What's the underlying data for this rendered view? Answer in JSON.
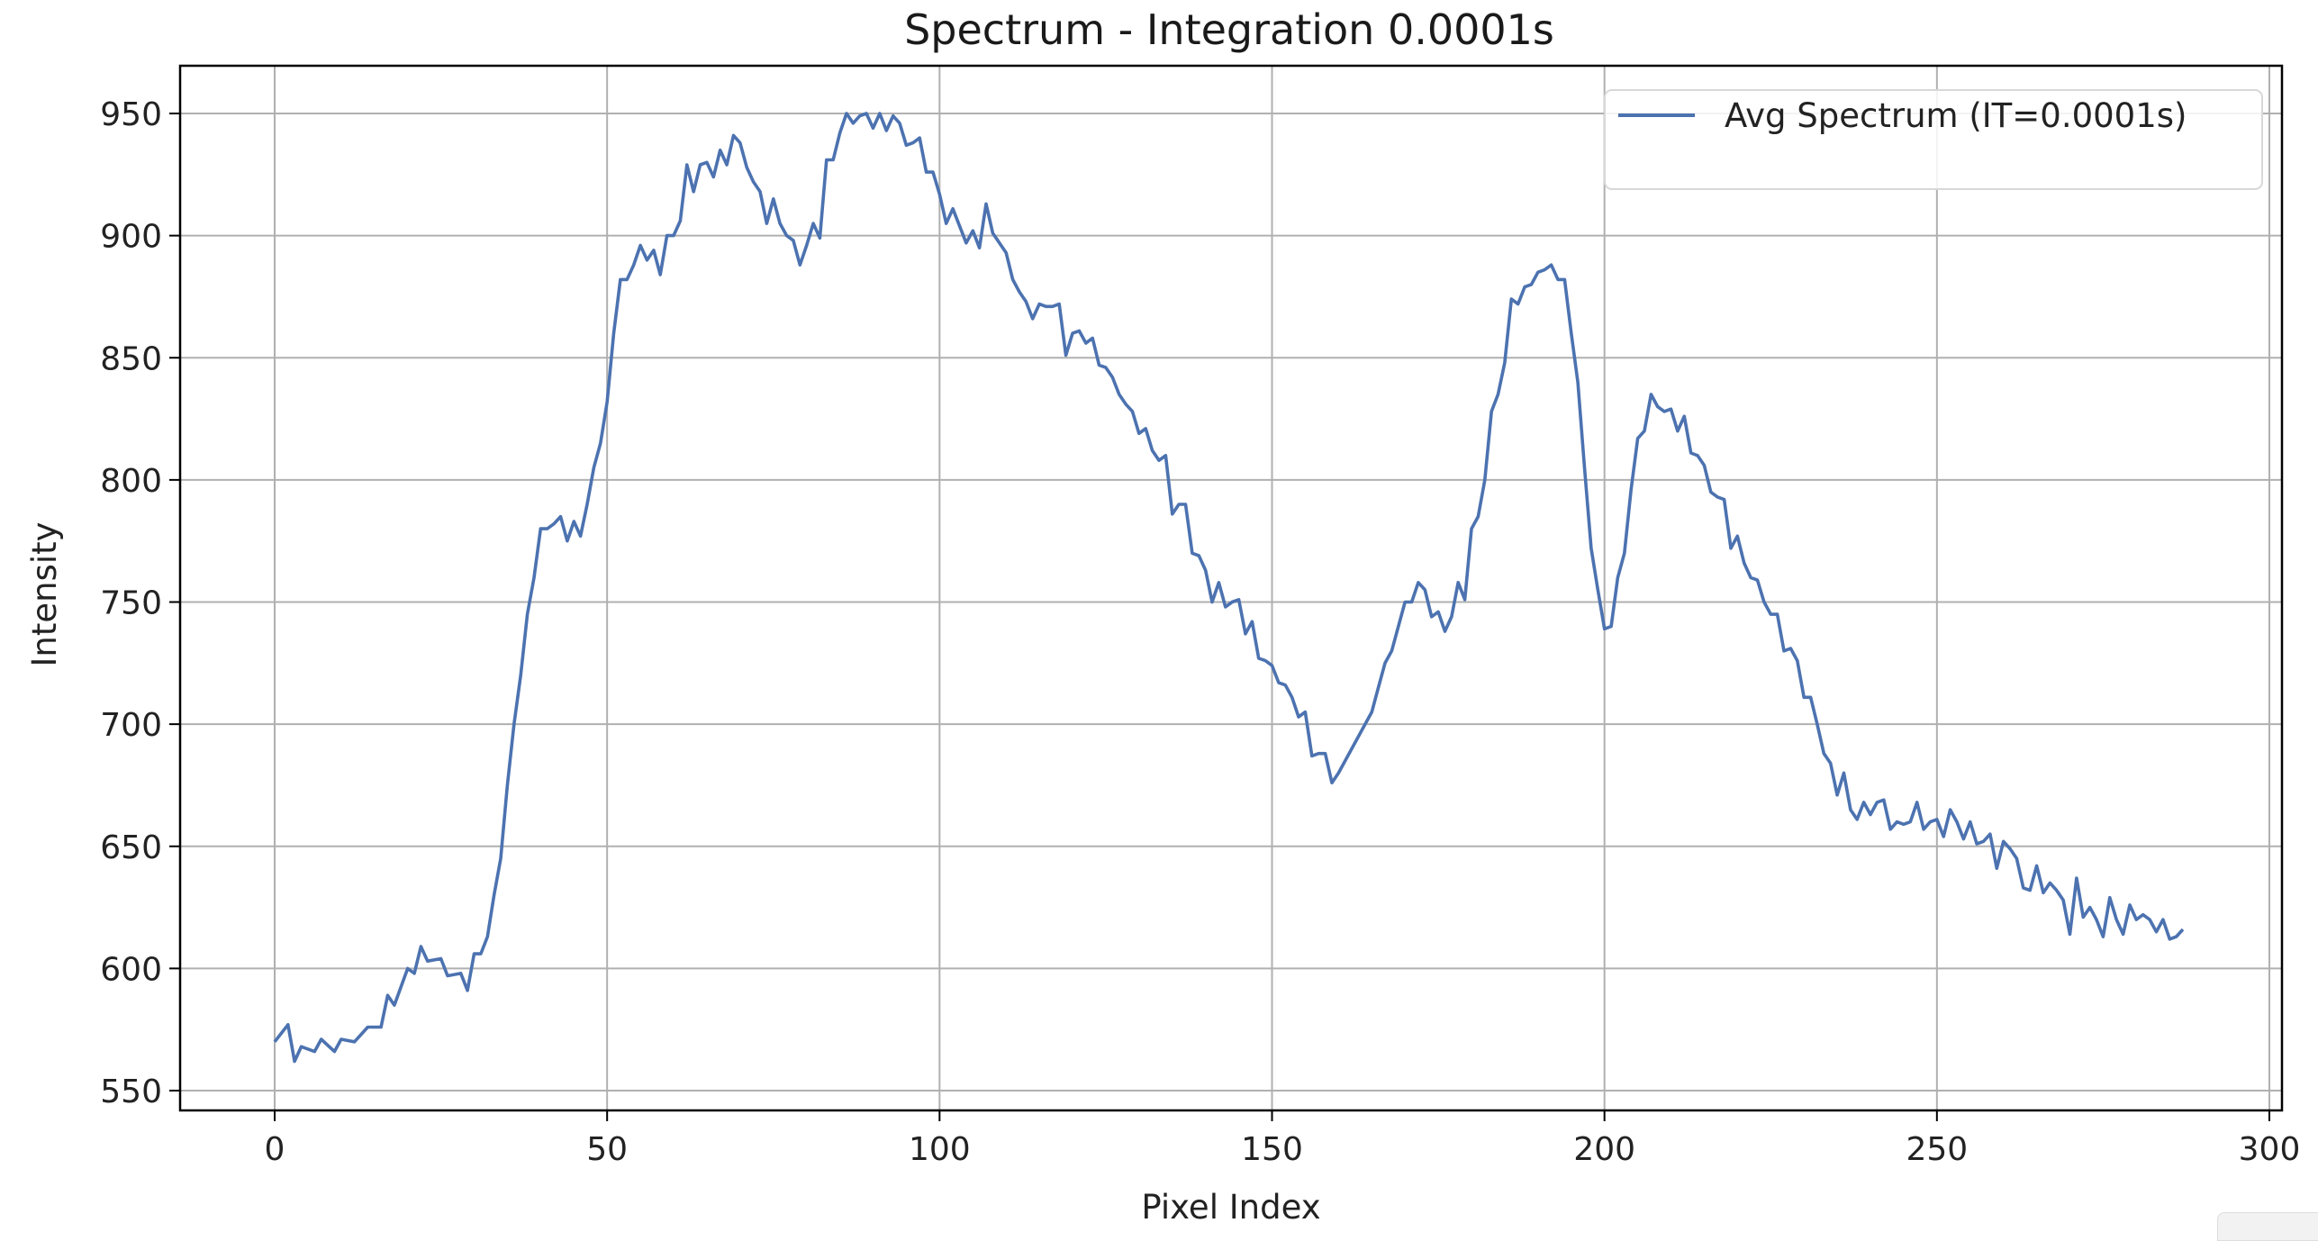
{
  "chart_data": {
    "type": "line",
    "title": "Spectrum - Integration 0.0001s",
    "xlabel": "Pixel Index",
    "ylabel": "Intensity",
    "xlim": [
      -14,
      302
    ],
    "ylim": [
      541,
      970
    ],
    "x_ticks": [
      0,
      50,
      100,
      150,
      200,
      250,
      300
    ],
    "y_ticks": [
      550,
      600,
      650,
      700,
      750,
      800,
      850,
      900,
      950
    ],
    "grid": true,
    "legend_position": "upper right",
    "series": [
      {
        "name": "Avg Spectrum (IT=0.0001s)",
        "color": "#4c72b0",
        "x": [
          0,
          2,
          3,
          4,
          6,
          7,
          9,
          10,
          12,
          14,
          16,
          17,
          18,
          20,
          21,
          22,
          23,
          25,
          26,
          28,
          29,
          30,
          31,
          32,
          33,
          34,
          35,
          36,
          37,
          38,
          39,
          40,
          41,
          42,
          43,
          44,
          45,
          46,
          47,
          48,
          49,
          50,
          51,
          52,
          53,
          54,
          55,
          56,
          57,
          58,
          59,
          60,
          61,
          62,
          63,
          64,
          65,
          66,
          67,
          68,
          69,
          70,
          71,
          72,
          73,
          74,
          75,
          76,
          77,
          78,
          79,
          80,
          81,
          82,
          83,
          84,
          85,
          86,
          87,
          88,
          89,
          90,
          91,
          92,
          93,
          94,
          95,
          96,
          97,
          98,
          99,
          100,
          101,
          102,
          103,
          104,
          105,
          106,
          107,
          108,
          109,
          110,
          111,
          112,
          113,
          114,
          115,
          116,
          117,
          118,
          119,
          120,
          121,
          122,
          123,
          124,
          125,
          126,
          127,
          128,
          129,
          130,
          131,
          132,
          133,
          134,
          135,
          136,
          137,
          138,
          139,
          140,
          141,
          142,
          143,
          144,
          145,
          146,
          147,
          148,
          149,
          150,
          151,
          152,
          153,
          154,
          155,
          156,
          157,
          158,
          159,
          160,
          162,
          164,
          165,
          166,
          167,
          168,
          169,
          170,
          171,
          172,
          173,
          174,
          175,
          176,
          177,
          178,
          179,
          180,
          181,
          182,
          183,
          184,
          185,
          186,
          187,
          188,
          189,
          190,
          191,
          192,
          193,
          194,
          195,
          196,
          197,
          198,
          199,
          200,
          201,
          202,
          203,
          204,
          205,
          206,
          207,
          208,
          209,
          210,
          211,
          212,
          213,
          214,
          215,
          216,
          217,
          218,
          219,
          220,
          221,
          222,
          223,
          224,
          225,
          226,
          227,
          228,
          229,
          230,
          231,
          232,
          233,
          234,
          235,
          236,
          237,
          238,
          239,
          240,
          241,
          242,
          243,
          244,
          245,
          246,
          247,
          248,
          249,
          250,
          251,
          252,
          253,
          254,
          255,
          256,
          257,
          258,
          259,
          260,
          261,
          262,
          263,
          264,
          265,
          266,
          267,
          268,
          269,
          270,
          271,
          272,
          273,
          274,
          275,
          276,
          277,
          278,
          279,
          280,
          281,
          282,
          283,
          284,
          285,
          286,
          287
        ],
        "values": [
          570,
          577,
          562,
          568,
          566,
          571,
          566,
          571,
          570,
          576,
          576,
          589,
          585,
          600,
          598,
          609,
          603,
          604,
          597,
          598,
          591,
          606,
          606,
          613,
          630,
          645,
          675,
          700,
          720,
          745,
          760,
          780,
          780,
          782,
          785,
          775,
          783,
          777,
          790,
          805,
          815,
          832,
          860,
          882,
          882,
          888,
          896,
          890,
          894,
          884,
          900,
          900,
          906,
          929,
          918,
          929,
          930,
          924,
          935,
          929,
          941,
          938,
          928,
          922,
          918,
          905,
          915,
          905,
          900,
          898,
          888,
          896,
          905,
          899,
          931,
          931,
          942,
          950,
          946,
          949,
          950,
          944,
          950,
          943,
          949,
          946,
          937,
          938,
          940,
          926,
          926,
          917,
          905,
          911,
          904,
          897,
          902,
          895,
          913,
          901,
          897,
          893,
          882,
          877,
          873,
          866,
          872,
          871,
          871,
          872,
          851,
          860,
          861,
          856,
          858,
          847,
          846,
          842,
          835,
          831,
          828,
          819,
          821,
          812,
          808,
          810,
          786,
          790,
          790,
          770,
          769,
          763,
          750,
          758,
          748,
          750,
          751,
          737,
          742,
          727,
          726,
          724,
          717,
          716,
          711,
          703,
          705,
          687,
          688,
          688,
          676,
          680,
          690,
          700,
          705,
          715,
          725,
          730,
          740,
          750,
          750,
          758,
          755,
          744,
          746,
          738,
          744,
          758,
          751,
          780,
          785,
          800,
          828,
          835,
          848,
          874,
          872,
          879,
          880,
          885,
          886,
          888,
          882,
          882,
          860,
          840,
          805,
          772,
          755,
          739,
          740,
          760,
          770,
          796,
          817,
          820,
          835,
          830,
          828,
          829,
          820,
          826,
          811,
          810,
          806,
          795,
          793,
          792,
          772,
          777,
          766,
          760,
          759,
          750,
          745,
          745,
          730,
          731,
          726,
          711,
          711,
          700,
          688,
          684,
          671,
          680,
          665,
          661,
          668,
          663,
          668,
          669,
          657,
          660,
          659,
          660,
          668,
          657,
          660,
          661,
          654,
          665,
          660,
          653,
          660,
          651,
          652,
          655,
          641,
          652,
          649,
          645,
          633,
          632,
          642,
          631,
          635,
          632,
          628,
          614,
          637,
          621,
          625,
          620,
          613,
          629,
          620,
          614,
          626,
          620,
          622,
          620,
          615,
          620,
          612,
          613,
          616
        ]
      }
    ]
  },
  "legend": {
    "label": "Avg Spectrum (IT=0.0001s)"
  },
  "colors": {
    "line": "#4c72b0",
    "grid": "#b0b0b0",
    "axis": "#000000"
  }
}
